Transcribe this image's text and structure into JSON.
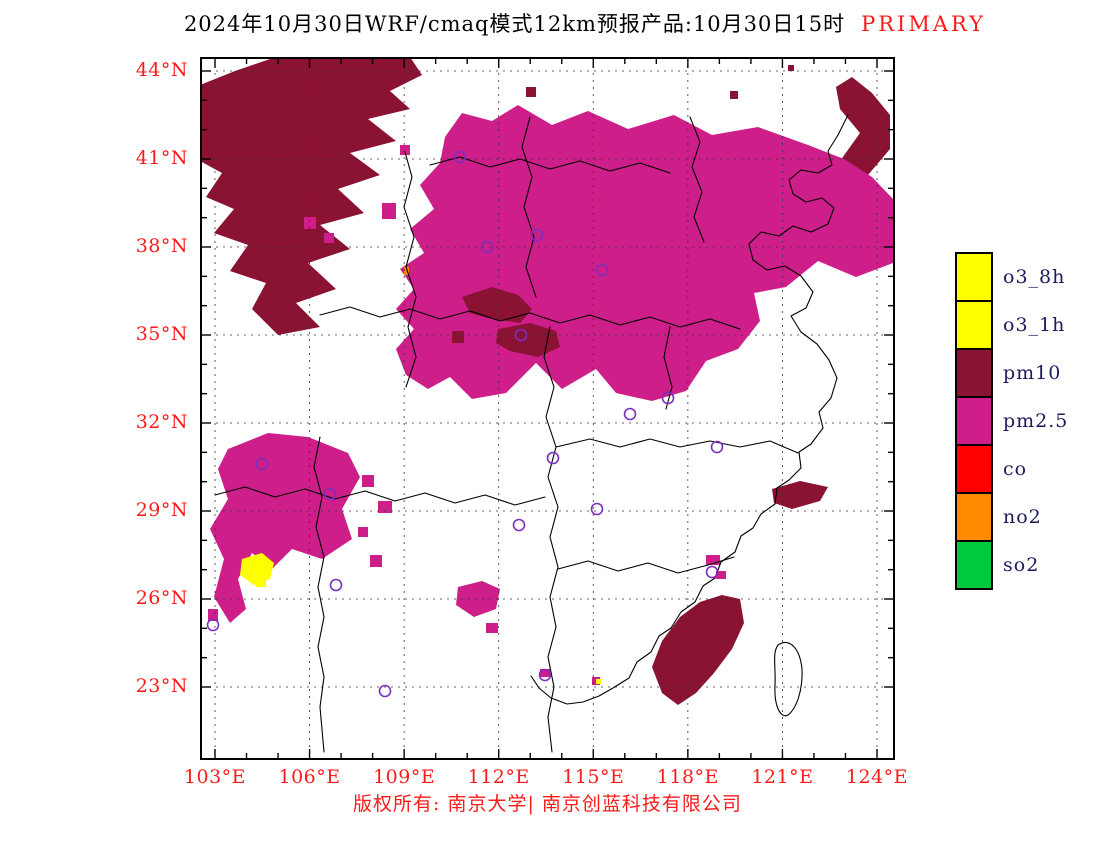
{
  "title": {
    "main": "2024年10月30日WRF/cmaq模式12km预报产品:10月30日15时",
    "tag": "PRIMARY"
  },
  "axes": {
    "x_ticks": [
      "103°E",
      "106°E",
      "109°E",
      "112°E",
      "115°E",
      "118°E",
      "121°E",
      "124°E"
    ],
    "y_ticks": [
      "44°N",
      "41°N",
      "38°N",
      "35°N",
      "32°N",
      "29°N",
      "26°N",
      "23°N"
    ]
  },
  "legend": {
    "items": [
      {
        "label": "o3_8h",
        "color": "#FFFF00"
      },
      {
        "label": "o3_1h",
        "color": "#FFFF00"
      },
      {
        "label": "pm10",
        "color": "#8A1232"
      },
      {
        "label": "pm2.5",
        "color": "#CE1E8A"
      },
      {
        "label": "co",
        "color": "#FF0000"
      },
      {
        "label": "no2",
        "color": "#FF8A00"
      },
      {
        "label": "so2",
        "color": "#00C93C"
      }
    ]
  },
  "colors": {
    "pm10": "#8A1232",
    "pm25": "#CE1E8A",
    "o3": "#FFFF00",
    "no2": "#FF8A00",
    "co": "#FF0000",
    "so2": "#00C93C",
    "marker": "#7B2FBE",
    "axis_text": "#FF1A1A",
    "title_tag": "#FF1A1A",
    "legend_text": "#1B1B5E",
    "footer": "#FF1A1A"
  },
  "footer": {
    "copyright": "版权所有: 南京大学| 南京创蓝科技有限公司"
  }
}
